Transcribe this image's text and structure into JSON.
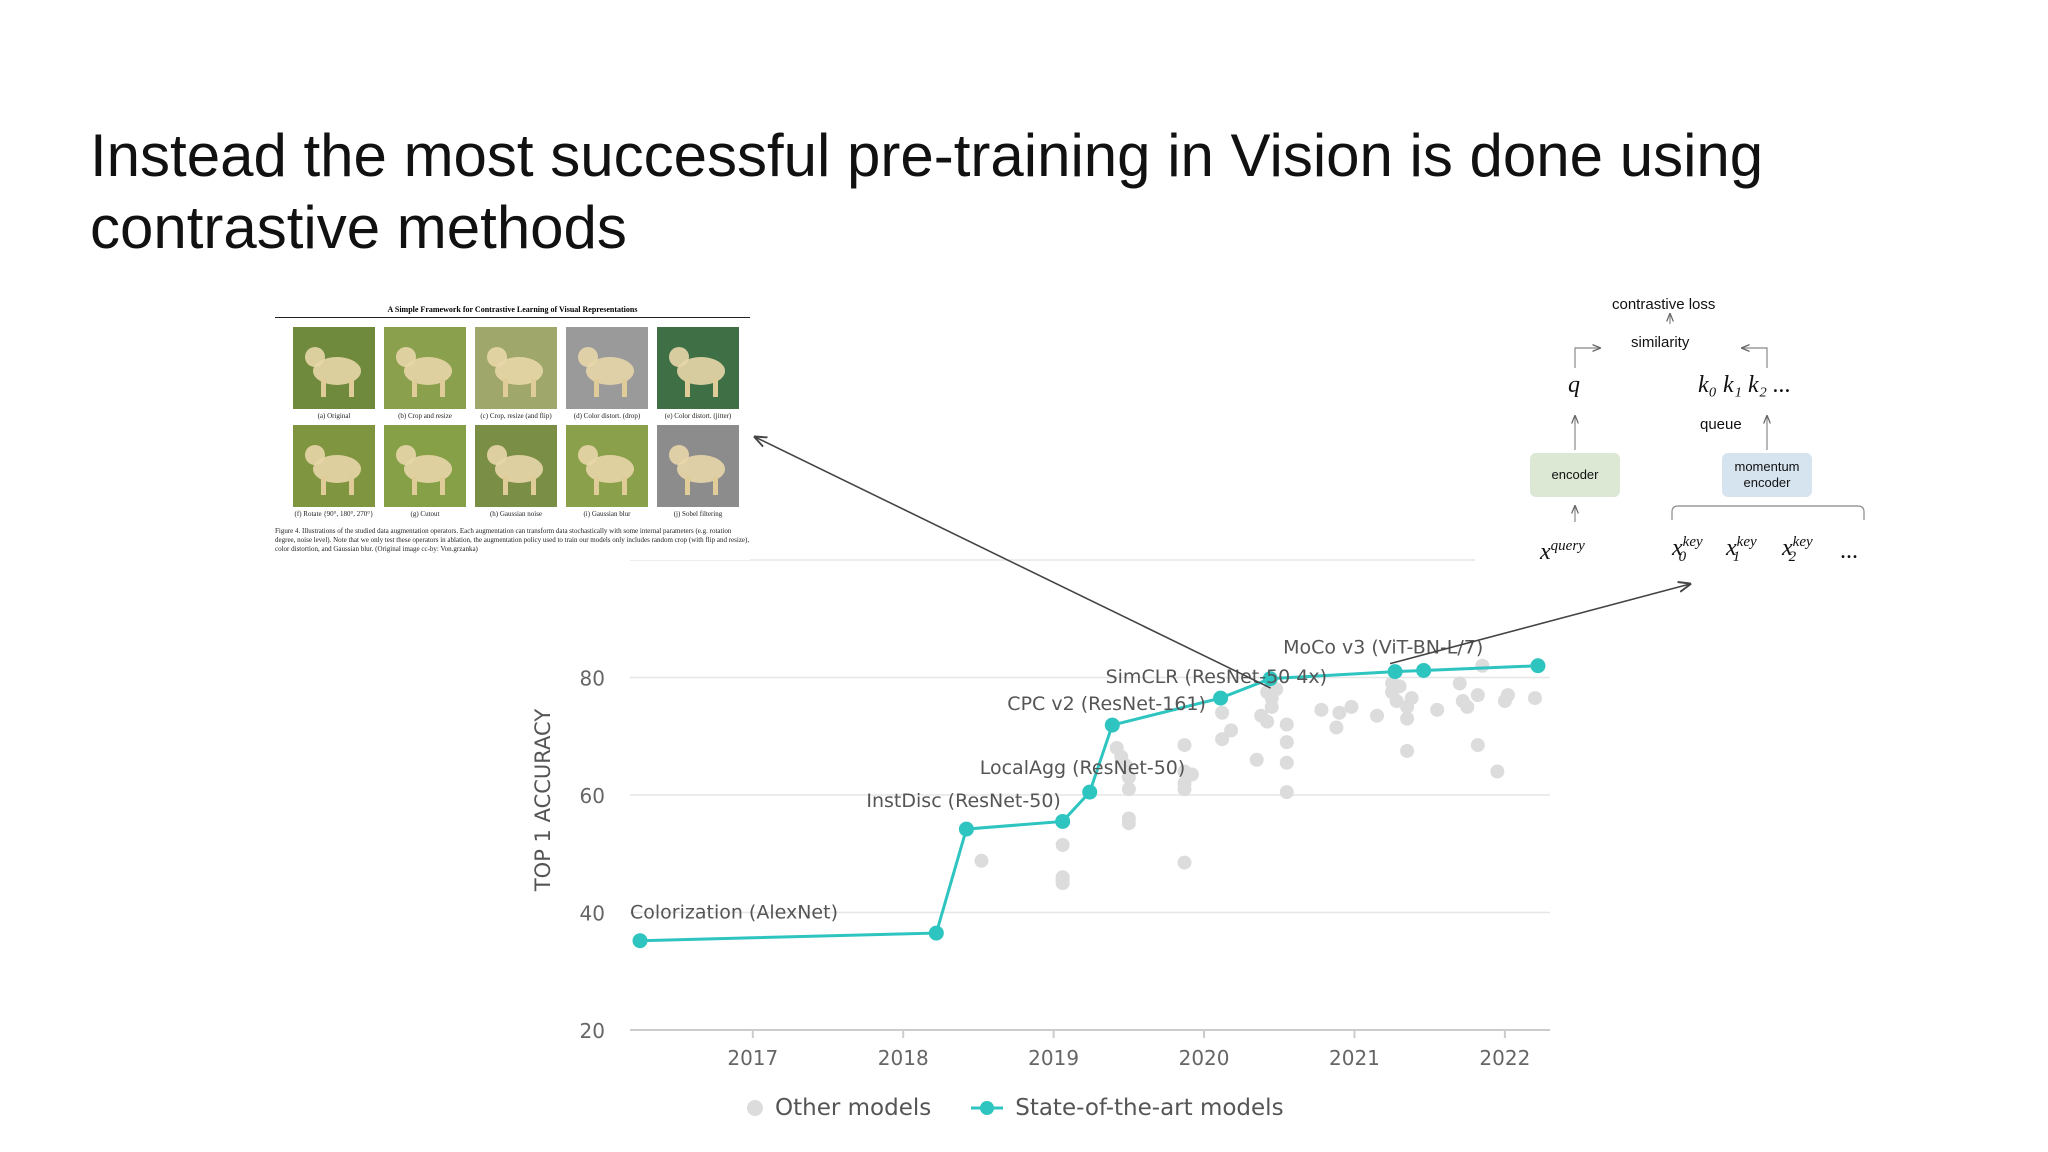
{
  "slide": {
    "title": "Instead the most successful pre-training in Vision is done using contrastive methods"
  },
  "paper_figure": {
    "title": "A Simple Framework for Contrastive Learning of Visual Representations",
    "panels": [
      {
        "label": "(a) Original",
        "tint": "#6f8a3c"
      },
      {
        "label": "(b) Crop and resize",
        "tint": "#8aa04c"
      },
      {
        "label": "(c) Crop, resize (and flip)",
        "tint": "#9fa86a"
      },
      {
        "label": "(d) Color distort. (drop)",
        "tint": "#9a9a9a"
      },
      {
        "label": "(e) Color distort. (jitter)",
        "tint": "#3f6f45"
      },
      {
        "label": "(f) Rotate {90°, 180°, 270°}",
        "tint": "#7f953f"
      },
      {
        "label": "(g) Cutout",
        "tint": "#86a048"
      },
      {
        "label": "(h) Gaussian noise",
        "tint": "#7b8e45"
      },
      {
        "label": "(i) Gaussian blur",
        "tint": "#8aa04a"
      },
      {
        "label": "(j) Sobel filtering",
        "tint": "#8c8c8c"
      }
    ],
    "caption": "Figure 4. Illustrations of the studied data augmentation operators. Each augmentation can transform data stochastically with some internal parameters (e.g. rotation degree, noise level). Note that we only test these operators in ablation, the augmentation policy used to train our models only includes random crop (with flip and resize), color distortion, and Gaussian blur. (Original image cc-by: Von.grzanka)"
  },
  "moco_diagram": {
    "contrastive_loss": "contrastive loss",
    "similarity": "similarity",
    "q": "q",
    "keys": "k₀ k₁ k₂ ...",
    "queue": "queue",
    "encoder": "encoder",
    "momentum_encoder_line1": "momentum",
    "momentum_encoder_line2": "encoder",
    "x_query": "x",
    "x_query_sup": "query",
    "x_keys": [
      {
        "base": "x",
        "sub": "0",
        "sup": "key"
      },
      {
        "base": "x",
        "sub": "1",
        "sup": "key"
      },
      {
        "base": "x",
        "sub": "2",
        "sup": "key"
      }
    ],
    "x_keys_ellipsis": "...",
    "colors": {
      "encoder_box": "#dce8d4",
      "momentum_box": "#d6e4ef"
    }
  },
  "legend": {
    "other": "Other models",
    "sota": "State-of-the-art models"
  },
  "chart_data": {
    "type": "scatter",
    "ylabel": "TOP 1 ACCURACY",
    "xlim": [
      2016.25,
      2022.3
    ],
    "ylim": [
      20,
      100
    ],
    "x_ticks": [
      2017,
      2018,
      2019,
      2020,
      2021,
      2022
    ],
    "y_ticks": [
      20,
      40,
      60,
      80
    ],
    "colors": {
      "sota": "#2ec4c0",
      "other": "#dcdcdc",
      "grid": "#e6e6e6",
      "axis": "#cccccc",
      "tick_text": "#666666",
      "label_text": "#555555"
    },
    "series": [
      {
        "name": "State-of-the-art models",
        "points": [
          {
            "x": 2016.25,
            "y": 35.2,
            "label": "Colorization (AlexNet)"
          },
          {
            "x": 2018.22,
            "y": 36.5
          },
          {
            "x": 2018.42,
            "y": 54.2,
            "label": "InstDisc (ResNet-50)"
          },
          {
            "x": 2019.06,
            "y": 55.5
          },
          {
            "x": 2019.24,
            "y": 60.5,
            "label": "LocalAgg (ResNet-50)"
          },
          {
            "x": 2019.39,
            "y": 71.9,
            "label": "CPC v2 (ResNet-161)"
          },
          {
            "x": 2020.11,
            "y": 76.5,
            "label": "SimCLR (ResNet-50 4x)"
          },
          {
            "x": 2020.44,
            "y": 79.8
          },
          {
            "x": 2021.27,
            "y": 81.0,
            "label": "MoCo v3 (ViT-BN-L/7)"
          },
          {
            "x": 2021.46,
            "y": 81.2
          },
          {
            "x": 2022.22,
            "y": 82.0
          }
        ]
      },
      {
        "name": "Other models",
        "points": [
          {
            "x": 2018.52,
            "y": 48.8
          },
          {
            "x": 2019.06,
            "y": 51.5
          },
          {
            "x": 2019.06,
            "y": 46.0
          },
          {
            "x": 2019.06,
            "y": 45.0
          },
          {
            "x": 2019.06,
            "y": 45.5
          },
          {
            "x": 2019.42,
            "y": 68.0
          },
          {
            "x": 2019.45,
            "y": 66.5
          },
          {
            "x": 2019.5,
            "y": 63.0
          },
          {
            "x": 2019.5,
            "y": 61.0
          },
          {
            "x": 2019.5,
            "y": 56.0
          },
          {
            "x": 2019.5,
            "y": 55.2
          },
          {
            "x": 2019.48,
            "y": 65.0
          },
          {
            "x": 2019.87,
            "y": 68.5
          },
          {
            "x": 2019.87,
            "y": 64.0
          },
          {
            "x": 2019.87,
            "y": 62.0
          },
          {
            "x": 2019.87,
            "y": 61.0
          },
          {
            "x": 2019.92,
            "y": 63.5
          },
          {
            "x": 2019.87,
            "y": 48.5
          },
          {
            "x": 2020.12,
            "y": 74.0
          },
          {
            "x": 2020.12,
            "y": 69.5
          },
          {
            "x": 2020.18,
            "y": 71.0
          },
          {
            "x": 2020.35,
            "y": 66.0
          },
          {
            "x": 2020.38,
            "y": 73.5
          },
          {
            "x": 2020.42,
            "y": 72.5
          },
          {
            "x": 2020.45,
            "y": 75.0
          },
          {
            "x": 2020.45,
            "y": 76.5
          },
          {
            "x": 2020.48,
            "y": 78.0
          },
          {
            "x": 2020.42,
            "y": 77.5
          },
          {
            "x": 2020.55,
            "y": 72.0
          },
          {
            "x": 2020.55,
            "y": 69.0
          },
          {
            "x": 2020.55,
            "y": 65.5
          },
          {
            "x": 2020.55,
            "y": 60.5
          },
          {
            "x": 2020.78,
            "y": 74.5
          },
          {
            "x": 2020.88,
            "y": 71.5
          },
          {
            "x": 2020.9,
            "y": 74.0
          },
          {
            "x": 2020.98,
            "y": 75.0
          },
          {
            "x": 2021.15,
            "y": 73.5
          },
          {
            "x": 2021.25,
            "y": 79.0
          },
          {
            "x": 2021.25,
            "y": 77.5
          },
          {
            "x": 2021.28,
            "y": 76.0
          },
          {
            "x": 2021.3,
            "y": 78.5
          },
          {
            "x": 2021.35,
            "y": 75.0
          },
          {
            "x": 2021.35,
            "y": 73.0
          },
          {
            "x": 2021.38,
            "y": 76.5
          },
          {
            "x": 2021.35,
            "y": 67.5
          },
          {
            "x": 2021.55,
            "y": 74.5
          },
          {
            "x": 2021.7,
            "y": 79.0
          },
          {
            "x": 2021.72,
            "y": 76.0
          },
          {
            "x": 2021.75,
            "y": 75.0
          },
          {
            "x": 2021.82,
            "y": 77.0
          },
          {
            "x": 2021.85,
            "y": 82.0
          },
          {
            "x": 2021.82,
            "y": 68.5
          },
          {
            "x": 2021.95,
            "y": 64.0
          },
          {
            "x": 2022.0,
            "y": 76.0
          },
          {
            "x": 2022.02,
            "y": 77.0
          },
          {
            "x": 2022.2,
            "y": 76.5
          }
        ]
      }
    ],
    "arrows": [
      {
        "from": "SimCLR (ResNet-50 4x)",
        "to": "paper_figure"
      },
      {
        "from": "MoCo v3 (ViT-BN-L/7)",
        "to": "moco_diagram"
      }
    ]
  }
}
